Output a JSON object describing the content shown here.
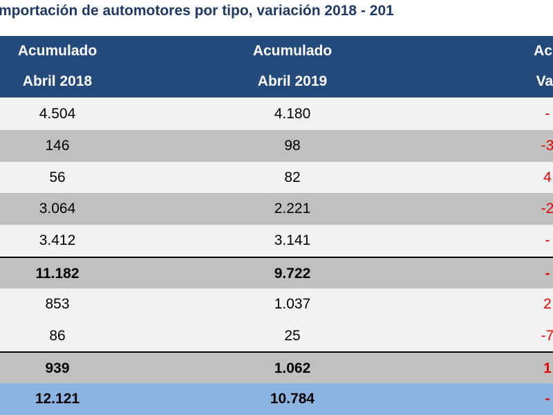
{
  "title": "mportación de automotores por tipo, variación 2018 - 201",
  "table": {
    "header": [
      [
        "Acumulado",
        "Abril 2018"
      ],
      [
        "Acumulado",
        "Abril 2019"
      ],
      [
        "Acu",
        "Var"
      ]
    ],
    "rows": [
      [
        "4.504",
        "4.180",
        "-"
      ],
      [
        "146",
        "98",
        "-3"
      ],
      [
        "56",
        "82",
        "4"
      ],
      [
        "3.064",
        "2.221",
        "-2"
      ],
      [
        "3.412",
        "3.141",
        "-"
      ],
      [
        "11.182",
        "9.722",
        "-"
      ],
      [
        "853",
        "1.037",
        "2"
      ],
      [
        "86",
        "25",
        "-7"
      ],
      [
        "939",
        "1.062",
        "1"
      ],
      [
        "12.121",
        "10.784",
        "-"
      ]
    ]
  }
}
